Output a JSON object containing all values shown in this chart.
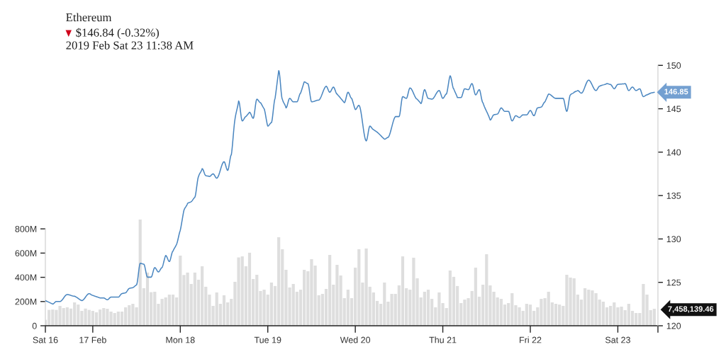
{
  "chart_data": {
    "type": "line",
    "title": "Ethereum",
    "subtitle": "$146.84 (-0.32%)",
    "annotations": [
      "2019 Feb Sat 23 11:38 AM",
      "146.85",
      "7,458,139.46"
    ],
    "xlim": [
      "2019-02-16T11:00",
      "2019-02-23T11:00"
    ],
    "xticks": [
      {
        "value": "2019-02-16T11:00",
        "label": "Sat 16"
      },
      {
        "value": "2019-02-17T00:00",
        "label": "17 Feb"
      },
      {
        "value": "2019-02-18T00:00",
        "label": "Mon 18"
      },
      {
        "value": "2019-02-19T00:00",
        "label": "Tue 19"
      },
      {
        "value": "2019-02-20T00:00",
        "label": "Wed 20"
      },
      {
        "value": "2019-02-21T00:00",
        "label": "Thu 21"
      },
      {
        "value": "2019-02-22T00:00",
        "label": "Fri 22"
      },
      {
        "value": "2019-02-23T00:00",
        "label": "Sat 23"
      },
      {
        "value": "2019-02-23T11:00",
        "label": null
      }
    ],
    "ylim": [
      0,
      2150
    ],
    "yticks": [
      0,
      {
        "value": 200,
        "label": "200M"
      },
      {
        "value": 400,
        "label": "400M"
      },
      {
        "value": 600,
        "label": "600M"
      },
      {
        "value": 800,
        "label": "800M"
      }
    ],
    "y2lim": [
      120,
      150
    ],
    "y2ticks": [
      120,
      125,
      130,
      135,
      140,
      145,
      150
    ],
    "series": [
      {
        "type": "bar",
        "axis": "y",
        "color": "#dedede",
        "x": [
          "2019-02-16T11:00",
          "2019-02-16T12:00",
          "2019-02-16T13:00",
          "2019-02-16T14:00",
          "2019-02-16T15:00",
          "2019-02-16T16:00",
          "2019-02-16T17:00",
          "2019-02-16T18:00",
          "2019-02-16T19:00",
          "2019-02-16T20:00",
          "2019-02-16T21:00",
          "2019-02-16T22:00",
          "2019-02-16T23:00",
          "2019-02-17T00:00",
          "2019-02-17T01:00",
          "2019-02-17T02:00",
          "2019-02-17T03:00",
          "2019-02-17T04:00",
          "2019-02-17T05:00",
          "2019-02-17T06:00",
          "2019-02-17T07:00",
          "2019-02-17T08:00",
          "2019-02-17T09:00",
          "2019-02-17T10:00",
          "2019-02-17T11:00",
          "2019-02-17T12:00",
          "2019-02-17T13:00",
          "2019-02-17T14:00",
          "2019-02-17T15:00",
          "2019-02-17T16:00",
          "2019-02-17T17:00",
          "2019-02-17T18:00",
          "2019-02-17T19:00",
          "2019-02-17T20:00",
          "2019-02-17T21:00",
          "2019-02-17T22:00",
          "2019-02-17T23:00",
          "2019-02-18T00:00",
          "2019-02-18T01:00",
          "2019-02-18T02:00",
          "2019-02-18T03:00",
          "2019-02-18T04:00",
          "2019-02-18T05:00",
          "2019-02-18T06:00",
          "2019-02-18T07:00",
          "2019-02-18T08:00",
          "2019-02-18T09:00",
          "2019-02-18T10:00",
          "2019-02-18T11:00",
          "2019-02-18T12:00",
          "2019-02-18T13:00",
          "2019-02-18T14:00",
          "2019-02-18T15:00",
          "2019-02-18T16:00",
          "2019-02-18T17:00",
          "2019-02-18T18:00",
          "2019-02-18T19:00",
          "2019-02-18T20:00",
          "2019-02-18T21:00",
          "2019-02-18T22:00",
          "2019-02-18T23:00",
          "2019-02-19T00:00",
          "2019-02-19T01:00",
          "2019-02-19T02:00",
          "2019-02-19T03:00",
          "2019-02-19T04:00",
          "2019-02-19T05:00",
          "2019-02-19T06:00",
          "2019-02-19T07:00",
          "2019-02-19T08:00",
          "2019-02-19T09:00",
          "2019-02-19T10:00",
          "2019-02-19T11:00",
          "2019-02-19T12:00",
          "2019-02-19T13:00",
          "2019-02-19T14:00",
          "2019-02-19T15:00",
          "2019-02-19T16:00",
          "2019-02-19T17:00",
          "2019-02-19T18:00",
          "2019-02-19T19:00",
          "2019-02-19T20:00",
          "2019-02-19T21:00",
          "2019-02-19T22:00",
          "2019-02-19T23:00",
          "2019-02-20T00:00",
          "2019-02-20T01:00",
          "2019-02-20T02:00",
          "2019-02-20T03:00",
          "2019-02-20T04:00",
          "2019-02-20T05:00",
          "2019-02-20T06:00",
          "2019-02-20T07:00",
          "2019-02-20T08:00",
          "2019-02-20T09:00",
          "2019-02-20T10:00",
          "2019-02-20T11:00",
          "2019-02-20T12:00",
          "2019-02-20T13:00",
          "2019-02-20T14:00",
          "2019-02-20T15:00",
          "2019-02-20T16:00",
          "2019-02-20T17:00",
          "2019-02-20T18:00",
          "2019-02-20T19:00",
          "2019-02-20T20:00",
          "2019-02-20T21:00",
          "2019-02-20T22:00",
          "2019-02-20T23:00",
          "2019-02-21T00:00",
          "2019-02-21T01:00",
          "2019-02-21T02:00",
          "2019-02-21T03:00",
          "2019-02-21T04:00",
          "2019-02-21T05:00",
          "2019-02-21T06:00",
          "2019-02-21T07:00",
          "2019-02-21T08:00",
          "2019-02-21T09:00",
          "2019-02-21T10:00",
          "2019-02-21T11:00",
          "2019-02-21T12:00",
          "2019-02-21T13:00",
          "2019-02-21T14:00",
          "2019-02-21T15:00",
          "2019-02-21T16:00",
          "2019-02-21T17:00",
          "2019-02-21T18:00",
          "2019-02-21T19:00",
          "2019-02-21T20:00",
          "2019-02-21T21:00",
          "2019-02-21T22:00",
          "2019-02-21T23:00",
          "2019-02-22T00:00",
          "2019-02-22T01:00",
          "2019-02-22T02:00",
          "2019-02-22T03:00",
          "2019-02-22T04:00",
          "2019-02-22T05:00",
          "2019-02-22T06:00",
          "2019-02-22T07:00",
          "2019-02-22T08:00",
          "2019-02-22T09:00",
          "2019-02-22T10:00",
          "2019-02-22T11:00",
          "2019-02-22T12:00",
          "2019-02-22T13:00",
          "2019-02-22T14:00",
          "2019-02-22T15:00",
          "2019-02-22T16:00",
          "2019-02-22T17:00",
          "2019-02-22T18:00",
          "2019-02-22T19:00",
          "2019-02-22T20:00",
          "2019-02-22T21:00",
          "2019-02-22T22:00",
          "2019-02-22T23:00",
          "2019-02-23T00:00",
          "2019-02-23T01:00",
          "2019-02-23T02:00",
          "2019-02-23T03:00",
          "2019-02-23T04:00",
          "2019-02-23T05:00",
          "2019-02-23T06:00",
          "2019-02-23T07:00",
          "2019-02-23T08:00",
          "2019-02-23T09:00",
          "2019-02-23T10:00"
        ],
        "values": [
          49,
          131,
          134,
          131,
          164,
          146,
          152,
          142,
          193,
          175,
          123,
          142,
          131,
          123,
          111,
          134,
          146,
          140,
          117,
          105,
          117,
          117,
          152,
          170,
          181,
          152,
          877,
          310,
          439,
          277,
          281,
          181,
          222,
          234,
          257,
          257,
          234,
          579,
          419,
          439,
          345,
          439,
          380,
          491,
          322,
          257,
          164,
          275,
          181,
          252,
          193,
          222,
          363,
          564,
          573,
          491,
          603,
          386,
          421,
          287,
          298,
          257,
          357,
          328,
          731,
          632,
          462,
          316,
          345,
          281,
          298,
          462,
          450,
          550,
          497,
          252,
          263,
          304,
          585,
          339,
          503,
          415,
          228,
          298,
          228,
          480,
          632,
          357,
          638,
          322,
          275,
          205,
          181,
          357,
          199,
          263,
          263,
          333,
          573,
          310,
          298,
          562,
          392,
          234,
          281,
          298,
          222,
          152,
          275,
          187,
          146,
          456,
          404,
          328,
          187,
          216,
          228,
          287,
          480,
          240,
          339,
          591,
          333,
          281,
          234,
          222,
          175,
          187,
          269,
          170,
          152,
          123,
          181,
          175,
          123,
          152,
          222,
          228,
          281,
          193,
          181,
          175,
          164,
          421,
          398,
          392,
          257,
          216,
          310,
          298,
          292,
          269,
          216,
          199,
          152,
          164,
          193,
          152,
          158,
          129,
          181,
          123,
          105,
          105,
          345,
          257,
          129,
          140
        ]
      },
      {
        "axis": "y2",
        "color": "#4a86c0",
        "x": [
          "2019-02-16T11:00",
          "2019-02-16T13:00",
          "2019-02-16T14:00",
          "2019-02-16T15:00",
          "2019-02-16T17:00",
          "2019-02-16T19:00",
          "2019-02-16T21:00",
          "2019-02-16T23:00",
          "2019-02-17T00:00",
          "2019-02-17T02:00",
          "2019-02-17T03:00",
          "2019-02-17T04:00",
          "2019-02-17T05:00",
          "2019-02-17T07:00",
          "2019-02-17T08:00",
          "2019-02-17T09:00",
          "2019-02-17T10:00",
          "2019-02-17T11:00",
          "2019-02-17T12:00",
          "2019-02-17T13:00",
          "2019-02-17T14:00",
          "2019-02-17T15:00",
          "2019-02-17T16:00",
          "2019-02-17T17:00",
          "2019-02-17T18:00",
          "2019-02-17T19:00",
          "2019-02-17T20:00",
          "2019-02-17T21:00",
          "2019-02-17T22:00",
          "2019-02-17T23:00",
          "2019-02-18T00:00",
          "2019-02-18T01:00",
          "2019-02-18T02:00",
          "2019-02-18T03:00",
          "2019-02-18T04:00",
          "2019-02-18T05:00",
          "2019-02-18T06:00",
          "2019-02-18T07:00",
          "2019-02-18T08:00",
          "2019-02-18T09:00",
          "2019-02-18T10:00",
          "2019-02-18T12:00",
          "2019-02-18T13:00",
          "2019-02-18T14:00",
          "2019-02-18T15:00",
          "2019-02-18T16:00",
          "2019-02-18T17:00",
          "2019-02-18T18:00",
          "2019-02-18T19:00",
          "2019-02-18T20:00",
          "2019-02-18T21:00",
          "2019-02-18T22:00",
          "2019-02-18T23:00",
          "2019-02-19T00:00",
          "2019-02-19T01:00",
          "2019-02-19T02:00",
          "2019-02-19T03:00",
          "2019-02-19T04:00",
          "2019-02-19T05:00",
          "2019-02-19T06:00",
          "2019-02-19T07:00",
          "2019-02-19T08:00",
          "2019-02-19T09:00",
          "2019-02-19T10:00",
          "2019-02-19T11:00",
          "2019-02-19T12:00",
          "2019-02-19T14:00",
          "2019-02-19T16:00",
          "2019-02-19T17:00",
          "2019-02-19T18:00",
          "2019-02-19T19:00",
          "2019-02-19T20:00",
          "2019-02-19T21:00",
          "2019-02-19T22:00",
          "2019-02-19T23:00",
          "2019-02-20T00:00",
          "2019-02-20T01:00",
          "2019-02-20T03:00",
          "2019-02-20T04:00",
          "2019-02-20T05:00",
          "2019-02-20T06:00",
          "2019-02-20T08:00",
          "2019-02-20T09:00",
          "2019-02-20T11:00",
          "2019-02-20T12:00",
          "2019-02-20T13:00",
          "2019-02-20T14:00",
          "2019-02-20T15:00",
          "2019-02-20T17:00",
          "2019-02-20T18:00",
          "2019-02-20T19:00",
          "2019-02-20T20:00",
          "2019-02-20T21:00",
          "2019-02-20T23:00",
          "2019-02-21T00:00",
          "2019-02-21T01:00",
          "2019-02-21T02:00",
          "2019-02-21T03:00",
          "2019-02-21T04:00",
          "2019-02-21T05:00",
          "2019-02-21T06:00",
          "2019-02-21T07:00",
          "2019-02-21T08:00",
          "2019-02-21T09:00",
          "2019-02-21T10:00",
          "2019-02-21T11:00",
          "2019-02-21T13:00",
          "2019-02-21T14:00",
          "2019-02-21T15:00",
          "2019-02-21T16:00",
          "2019-02-21T17:00",
          "2019-02-21T18:00",
          "2019-02-21T19:00",
          "2019-02-21T20:00",
          "2019-02-21T21:00",
          "2019-02-21T22:00",
          "2019-02-21T23:00",
          "2019-02-22T00:00",
          "2019-02-22T01:00",
          "2019-02-22T02:00",
          "2019-02-22T03:00",
          "2019-02-22T04:00",
          "2019-02-22T05:00",
          "2019-02-22T07:00",
          "2019-02-22T09:00",
          "2019-02-22T10:00",
          "2019-02-22T11:00",
          "2019-02-22T12:00",
          "2019-02-22T13:00",
          "2019-02-22T14:00",
          "2019-02-22T16:00",
          "2019-02-22T18:00",
          "2019-02-22T19:00",
          "2019-02-22T21:00",
          "2019-02-22T22:00",
          "2019-02-22T23:00",
          "2019-02-23T00:00",
          "2019-02-23T02:00",
          "2019-02-23T03:00",
          "2019-02-23T04:00",
          "2019-02-23T05:00",
          "2019-02-23T06:00",
          "2019-02-23T07:00",
          "2019-02-23T08:00",
          "2019-02-23T09:00",
          "2019-02-23T10:00"
        ],
        "values": [
          122.9,
          122.5,
          122.8,
          122.8,
          123.6,
          123.4,
          122.9,
          123.7,
          123.5,
          123.2,
          123.2,
          123.0,
          123.3,
          123.3,
          123.7,
          123.8,
          124.3,
          124.4,
          124.7,
          127.2,
          127.1,
          125.6,
          125.6,
          126.7,
          126.2,
          126.7,
          128.1,
          127.4,
          128.6,
          129.4,
          131.0,
          133.3,
          134.1,
          134.3,
          134.8,
          137.2,
          138.1,
          137.3,
          137.2,
          137.5,
          137.0,
          138.9,
          137.9,
          139.7,
          143.8,
          145.9,
          143.6,
          144.1,
          144.6,
          143.9,
          146.1,
          145.7,
          145.0,
          143.0,
          143.4,
          146.2,
          149.4,
          146.1,
          145.1,
          146.2,
          145.8,
          145.8,
          146.8,
          148.1,
          147.9,
          145.8,
          146.0,
          147.6,
          146.9,
          147.5,
          146.7,
          146.2,
          145.7,
          146.9,
          146.2,
          144.9,
          145.4,
          141.3,
          143.0,
          142.6,
          142.3,
          141.5,
          141.7,
          144.1,
          144.1,
          146.4,
          146.2,
          147.4,
          146.1,
          145.6,
          147.2,
          146.2,
          146.1,
          147.1,
          146.2,
          146.7,
          148.8,
          147.3,
          146.3,
          146.3,
          147.3,
          147.2,
          147.9,
          146.6,
          147.2,
          145.7,
          143.7,
          144.3,
          144.4,
          145.1,
          144.7,
          144.7,
          143.6,
          144.2,
          144.0,
          144.3,
          144.3,
          144.8,
          144.2,
          145.1,
          145.2,
          145.8,
          146.7,
          146.2,
          146.2,
          144.7,
          146.6,
          146.9,
          147.1,
          146.8,
          148.3,
          147.1,
          147.6,
          147.9,
          147.8,
          147.3,
          147.8,
          147.9,
          147.1,
          147.5,
          147.1,
          147.3,
          146.4,
          146.6,
          146.8,
          146.9
        ]
      }
    ]
  }
}
